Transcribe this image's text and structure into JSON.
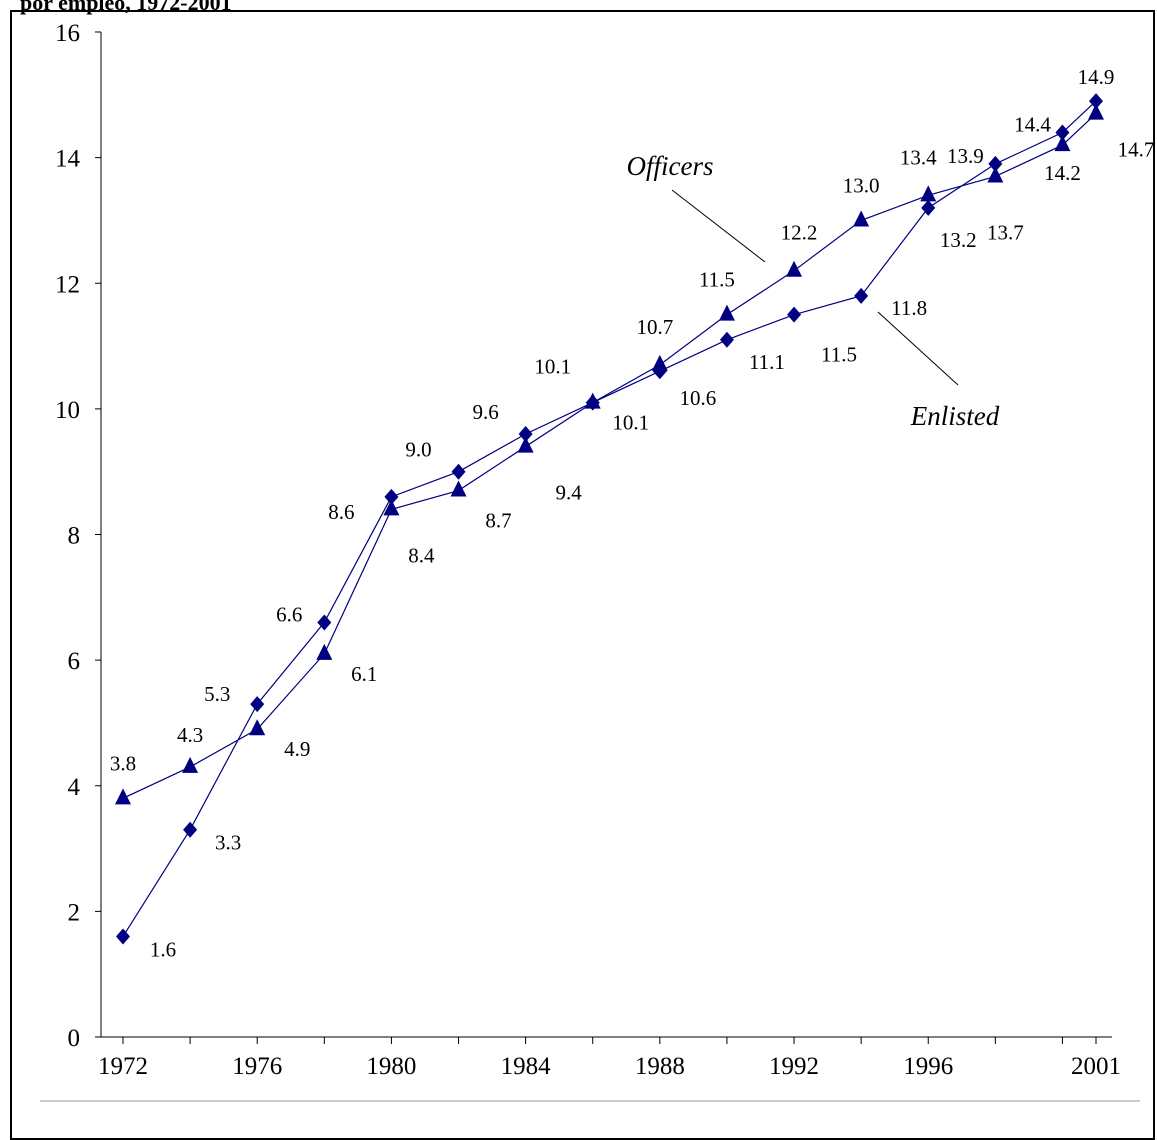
{
  "title": "por empleo, 1972-2001",
  "chart_data": {
    "type": "line",
    "x": [
      1972,
      1974,
      1976,
      1978,
      1980,
      1982,
      1984,
      1986,
      1988,
      1990,
      1992,
      1994,
      1996,
      1998,
      2000,
      2001
    ],
    "xticks": [
      1972,
      1976,
      1980,
      1984,
      1988,
      1992,
      1996,
      2001
    ],
    "xlim": [
      1972,
      2001
    ],
    "ylim": [
      0,
      16
    ],
    "yticks": [
      0,
      2,
      4,
      6,
      8,
      10,
      12,
      14,
      16
    ],
    "grid": false,
    "series": [
      {
        "name": "Officers",
        "marker": "triangle",
        "color": "#000080",
        "values": [
          3.8,
          4.3,
          4.9,
          6.1,
          8.4,
          8.7,
          9.4,
          10.1,
          10.7,
          11.5,
          12.2,
          13.0,
          13.4,
          13.7,
          14.2,
          14.7
        ]
      },
      {
        "name": "Enlisted",
        "marker": "diamond",
        "color": "#000080",
        "values": [
          1.6,
          3.3,
          5.3,
          6.6,
          8.6,
          9.0,
          9.6,
          10.1,
          10.6,
          11.1,
          11.5,
          11.8,
          13.2,
          13.9,
          14.4,
          14.9
        ]
      }
    ]
  }
}
